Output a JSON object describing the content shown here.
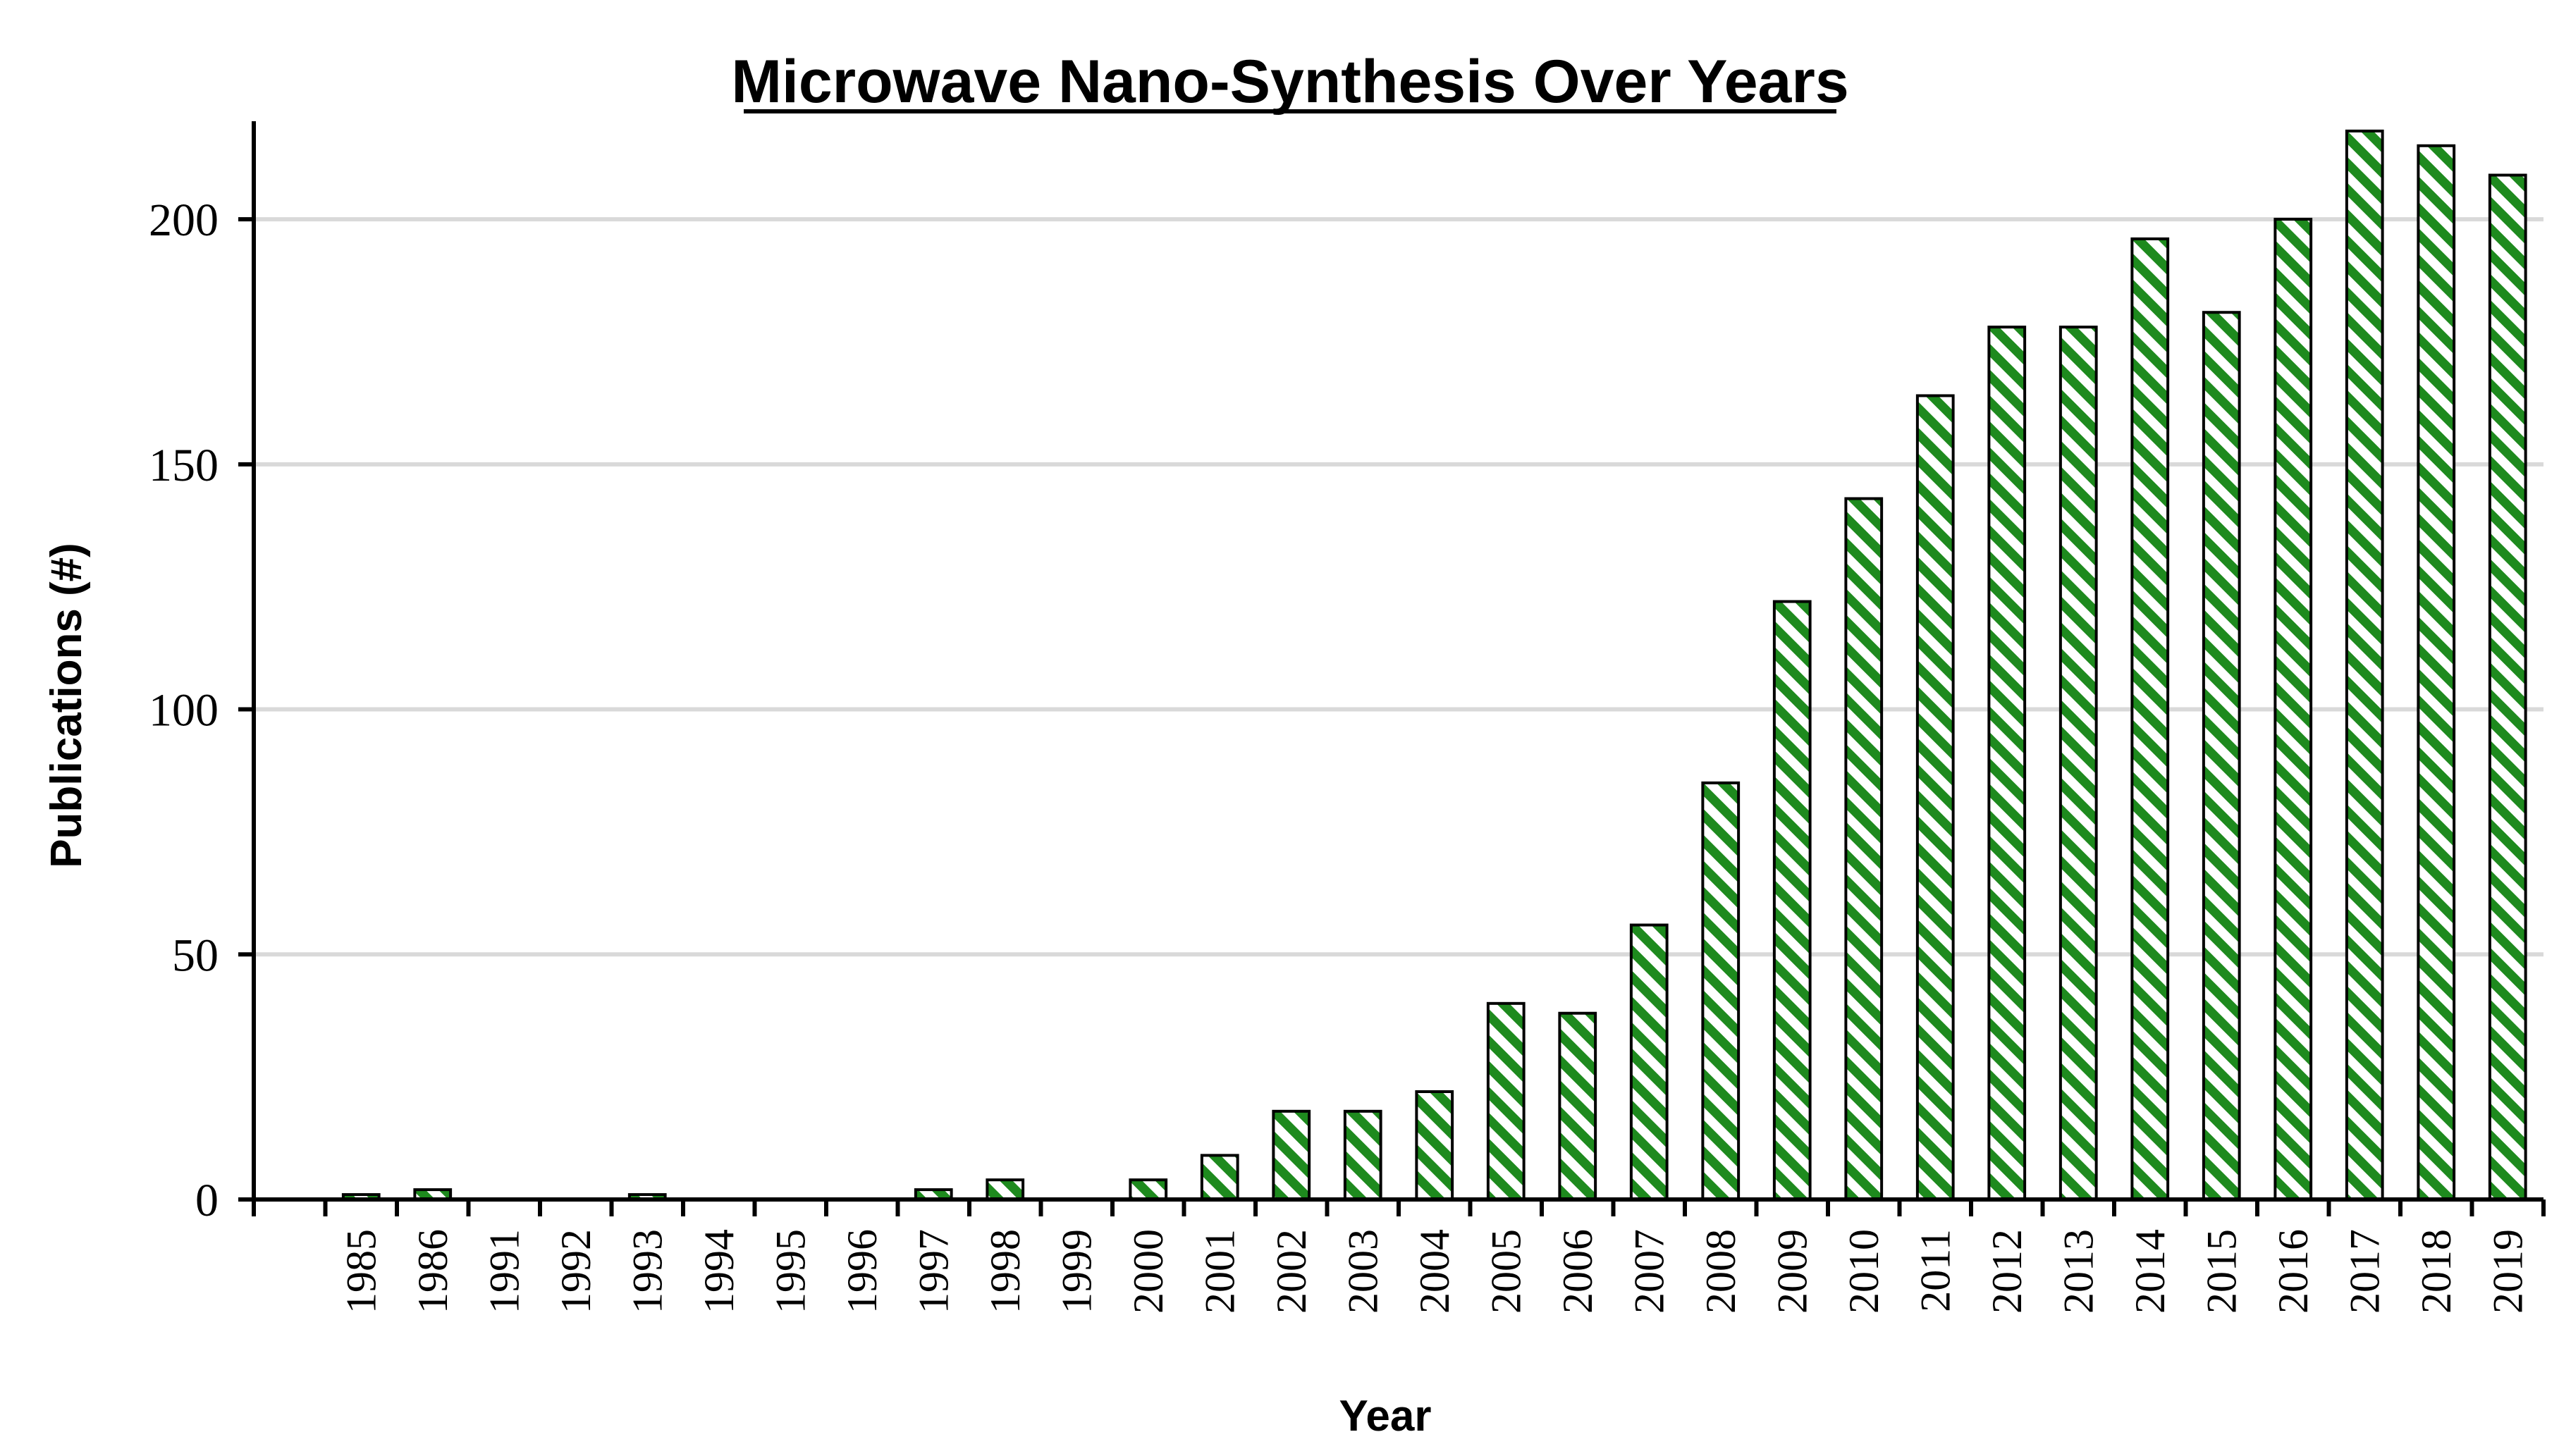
{
  "chart_data": {
    "type": "bar",
    "title": "Microwave Nano-Synthesis Over Years",
    "xlabel": "Year",
    "ylabel": "Publications (#)",
    "ylim": [
      0,
      220
    ],
    "yticks": [
      0,
      50,
      100,
      150,
      200
    ],
    "grid": "horizontal",
    "legend": "none",
    "bar_fill_pattern": "diagonal-hatch",
    "colors": {
      "hatch": "#1e8a1e",
      "bar_outline": "#000000",
      "gridline": "#d9d9d9",
      "axis": "#000000"
    },
    "categories": [
      "1985",
      "1986",
      "1991",
      "1992",
      "1993",
      "1994",
      "1995",
      "1996",
      "1997",
      "1998",
      "1999",
      "2000",
      "2001",
      "2002",
      "2003",
      "2004",
      "2005",
      "2006",
      "2007",
      "2008",
      "2009",
      "2010",
      "2011",
      "2012",
      "2013",
      "2014",
      "2015",
      "2016",
      "2017",
      "2018",
      "2019"
    ],
    "values": [
      1,
      2,
      0,
      0,
      1,
      0,
      0,
      0,
      2,
      4,
      0,
      4,
      9,
      18,
      18,
      22,
      40,
      38,
      56,
      85,
      122,
      143,
      164,
      178,
      178,
      196,
      181,
      200,
      218,
      215,
      209
    ]
  }
}
